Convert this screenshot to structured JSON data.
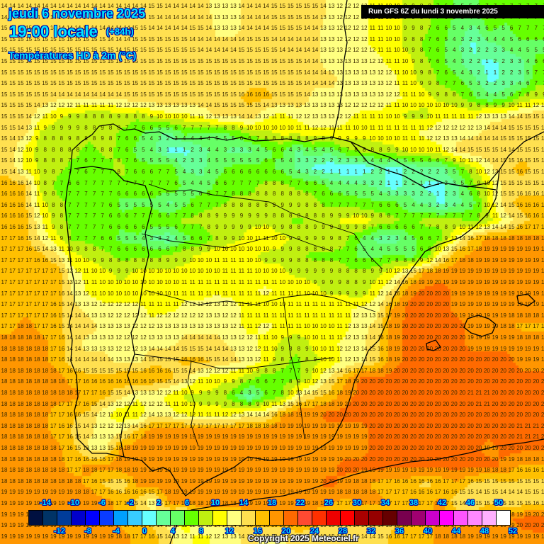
{
  "header": {
    "date": "jeudi 6 novembre 2025",
    "time": "19:00 locale",
    "offset": "(+84h)",
    "variable": "Températures HD à 2m (°C)"
  },
  "run_badge": "Run GFS 6Z du lundi 3 novembre 2025",
  "copyright": "Copyright 2025 Meteociel.fr",
  "colorbar": {
    "colors": [
      "#001040",
      "#003366",
      "#003c9a",
      "#0000cc",
      "#0000ff",
      "#0a3cff",
      "#00a0ff",
      "#38ccff",
      "#66ffff",
      "#66ff99",
      "#66ff66",
      "#66ff00",
      "#c0f010",
      "#ffff00",
      "#ffff80",
      "#ffe050",
      "#ffc000",
      "#ff9600",
      "#ff6a00",
      "#ff4a32",
      "#ff3000",
      "#ee0000",
      "#ff0000",
      "#aa0000",
      "#960000",
      "#660000",
      "#78004e",
      "#a00070",
      "#cc00cc",
      "#ff00ff",
      "#ff55ff",
      "#ff88ff",
      "#ffb0ff",
      "#ffffff"
    ],
    "top_ticks": [
      "-14",
      "-10",
      "-6",
      "-2",
      "2",
      "6",
      "10",
      "14",
      "18",
      "22",
      "26",
      "30",
      "34",
      "38",
      "42",
      "46",
      "50"
    ],
    "bottom_ticks": [
      "-12",
      "-8",
      "-4",
      "0",
      "4",
      "8",
      "12",
      "16",
      "20",
      "24",
      "28",
      "32",
      "36",
      "40",
      "44",
      "48",
      "52"
    ]
  },
  "chart_data": {
    "type": "heatmap",
    "title": "Températures HD à 2m (°C)",
    "subtitle": "jeudi 6 novembre 2025 19:00 locale (+84h) — Run GFS 6Z du lundi 3 novembre 2025",
    "region": "Iberian Peninsula, Bay of Biscay, Balearic Islands, SW France",
    "units": "°C",
    "scale_min": -14,
    "scale_max": 52,
    "scale_step": 2,
    "grid_note": "coarse sample of the labeled value grid (rows top→bottom, cols left→right, ~23px x 31px spacing)",
    "rows": [
      [
        14,
        14,
        14,
        14,
        14,
        14,
        14,
        14,
        14,
        15,
        14,
        14,
        14,
        13,
        13,
        14,
        14,
        15,
        15,
        15,
        13,
        12,
        12,
        11,
        10,
        9,
        8,
        7,
        5,
        5,
        7,
        7,
        7,
        7
      ],
      [
        15,
        15,
        14,
        14,
        14,
        14,
        14,
        14,
        15,
        14,
        14,
        14,
        15,
        13,
        13,
        14,
        14,
        15,
        15,
        14,
        13,
        12,
        12,
        11,
        10,
        9,
        8,
        6,
        5,
        3,
        6,
        5,
        7,
        7
      ],
      [
        15,
        15,
        15,
        15,
        15,
        15,
        15,
        14,
        15,
        15,
        15,
        15,
        14,
        14,
        14,
        15,
        15,
        14,
        14,
        14,
        13,
        12,
        12,
        11,
        10,
        9,
        7,
        6,
        4,
        1,
        3,
        4,
        5,
        5
      ],
      [
        15,
        15,
        15,
        15,
        15,
        15,
        15,
        15,
        15,
        15,
        15,
        15,
        15,
        15,
        15,
        15,
        15,
        15,
        15,
        14,
        13,
        13,
        13,
        12,
        11,
        10,
        8,
        6,
        4,
        2,
        1,
        2,
        3,
        6
      ],
      [
        15,
        15,
        15,
        15,
        15,
        15,
        15,
        15,
        15,
        15,
        15,
        15,
        15,
        15,
        15,
        15,
        15,
        15,
        15,
        14,
        14,
        13,
        13,
        13,
        12,
        10,
        9,
        7,
        6,
        4,
        1,
        2,
        3,
        7
      ],
      [
        15,
        15,
        15,
        14,
        14,
        14,
        14,
        14,
        15,
        15,
        15,
        15,
        15,
        15,
        15,
        16,
        16,
        15,
        15,
        13,
        13,
        13,
        13,
        13,
        12,
        11,
        10,
        9,
        8,
        6,
        4,
        5,
        8,
        9
      ],
      [
        15,
        15,
        12,
        10,
        9,
        8,
        8,
        9,
        8,
        10,
        11,
        11,
        12,
        14,
        14,
        15,
        12,
        11,
        12,
        13,
        13,
        12,
        11,
        11,
        10,
        9,
        9,
        11,
        11,
        11,
        13,
        13,
        14,
        15
      ],
      [
        15,
        14,
        9,
        8,
        9,
        8,
        9,
        7,
        6,
        4,
        3,
        6,
        5,
        5,
        6,
        8,
        9,
        10,
        10,
        11,
        11,
        11,
        10,
        11,
        11,
        11,
        12,
        13,
        13,
        13,
        14,
        15,
        15,
        15
      ],
      [
        15,
        11,
        8,
        8,
        8,
        7,
        8,
        7,
        5,
        4,
        1,
        1,
        3,
        4,
        3,
        3,
        5,
        6,
        3,
        5,
        4,
        7,
        8,
        8,
        9,
        10,
        10,
        11,
        14,
        15,
        15,
        14,
        15,
        15
      ],
      [
        15,
        11,
        9,
        8,
        7,
        6,
        7,
        8,
        6,
        6,
        7,
        3,
        3,
        5,
        6,
        6,
        6,
        5,
        3,
        1,
        0,
        0,
        0,
        2,
        1,
        2,
        3,
        3,
        6,
        9,
        13,
        15,
        16,
        15
      ],
      [
        16,
        16,
        9,
        7,
        6,
        7,
        7,
        7,
        7,
        7,
        7,
        5,
        4,
        6,
        7,
        7,
        8,
        8,
        7,
        7,
        5,
        4,
        4,
        3,
        0,
        3,
        1,
        1,
        3,
        7,
        10,
        15,
        15,
        15
      ],
      [
        16,
        16,
        10,
        8,
        7,
        7,
        7,
        5,
        5,
        5,
        3,
        5,
        7,
        7,
        8,
        8,
        8,
        9,
        9,
        8,
        7,
        7,
        6,
        6,
        6,
        4,
        3,
        1,
        3,
        5,
        10,
        15,
        16,
        16
      ],
      [
        16,
        16,
        12,
        8,
        7,
        7,
        7,
        6,
        7,
        7,
        7,
        8,
        8,
        9,
        9,
        9,
        9,
        8,
        7,
        8,
        9,
        10,
        11,
        9,
        8,
        7,
        8,
        8,
        8,
        7,
        9,
        12,
        15,
        16
      ],
      [
        17,
        16,
        13,
        10,
        7,
        7,
        6,
        5,
        5,
        3,
        2,
        5,
        6,
        8,
        9,
        10,
        11,
        10,
        9,
        9,
        9,
        8,
        5,
        3,
        2,
        5,
        6,
        7,
        12,
        16,
        18,
        18,
        18,
        18
      ],
      [
        17,
        17,
        16,
        14,
        10,
        9,
        8,
        7,
        7,
        7,
        8,
        9,
        10,
        11,
        11,
        10,
        9,
        9,
        8,
        7,
        7,
        7,
        5,
        5,
        6,
        5,
        6,
        13,
        17,
        18,
        19,
        19,
        19,
        19
      ],
      [
        17,
        17,
        17,
        17,
        12,
        11,
        10,
        9,
        10,
        10,
        10,
        10,
        10,
        10,
        11,
        11,
        10,
        10,
        9,
        9,
        9,
        8,
        8,
        9,
        11,
        14,
        18,
        19,
        19,
        19,
        19,
        19,
        19,
        19
      ],
      [
        17,
        17,
        17,
        17,
        13,
        11,
        10,
        10,
        10,
        10,
        10,
        11,
        11,
        11,
        11,
        11,
        12,
        11,
        11,
        10,
        9,
        9,
        8,
        11,
        14,
        19,
        20,
        20,
        19,
        19,
        19,
        19,
        19,
        19
      ],
      [
        17,
        17,
        17,
        16,
        14,
        13,
        12,
        12,
        12,
        11,
        11,
        12,
        12,
        13,
        12,
        11,
        10,
        10,
        11,
        11,
        11,
        11,
        12,
        13,
        18,
        20,
        20,
        20,
        19,
        19,
        19,
        19,
        19,
        19
      ],
      [
        17,
        18,
        17,
        16,
        14,
        14,
        13,
        13,
        12,
        12,
        13,
        13,
        13,
        13,
        12,
        11,
        12,
        11,
        11,
        10,
        10,
        11,
        13,
        14,
        19,
        20,
        20,
        20,
        20,
        19,
        19,
        18,
        17,
        17
      ],
      [
        18,
        18,
        18,
        17,
        14,
        13,
        13,
        12,
        12,
        13,
        13,
        14,
        14,
        14,
        13,
        12,
        11,
        9,
        8,
        10,
        11,
        12,
        13,
        15,
        19,
        20,
        20,
        20,
        20,
        19,
        19,
        19,
        19,
        19
      ],
      [
        18,
        18,
        18,
        17,
        14,
        14,
        14,
        13,
        13,
        15,
        15,
        16,
        16,
        15,
        14,
        13,
        11,
        8,
        7,
        9,
        10,
        12,
        13,
        15,
        19,
        20,
        20,
        20,
        20,
        20,
        20,
        20,
        19,
        19
      ],
      [
        18,
        18,
        18,
        18,
        17,
        16,
        16,
        17,
        17,
        17,
        16,
        14,
        11,
        10,
        10,
        8,
        6,
        7,
        7,
        10,
        14,
        17,
        20,
        20,
        20,
        20,
        20,
        20,
        20,
        20,
        20,
        20,
        20,
        20
      ],
      [
        18,
        18,
        18,
        18,
        18,
        17,
        16,
        14,
        12,
        12,
        11,
        9,
        9,
        9,
        6,
        2,
        6,
        7,
        13,
        15,
        16,
        19,
        20,
        20,
        20,
        20,
        20,
        20,
        20,
        21,
        21,
        20,
        20,
        20
      ],
      [
        18,
        18,
        18,
        17,
        16,
        15,
        12,
        10,
        10,
        13,
        12,
        11,
        10,
        10,
        11,
        13,
        13,
        17,
        19,
        19,
        20,
        20,
        20,
        20,
        20,
        20,
        20,
        20,
        20,
        20,
        20,
        20,
        20,
        20
      ],
      [
        18,
        18,
        18,
        17,
        15,
        14,
        12,
        13,
        16,
        19,
        19,
        19,
        19,
        19,
        19,
        19,
        19,
        19,
        19,
        19,
        19,
        19,
        19,
        20,
        20,
        20,
        20,
        20,
        20,
        20,
        20,
        20,
        21,
        21
      ],
      [
        18,
        18,
        18,
        18,
        16,
        13,
        13,
        18,
        19,
        19,
        19,
        19,
        19,
        19,
        19,
        19,
        19,
        19,
        19,
        19,
        19,
        19,
        19,
        20,
        20,
        20,
        20,
        20,
        20,
        20,
        19,
        20,
        20,
        20
      ],
      [
        18,
        18,
        18,
        18,
        17,
        18,
        18,
        19,
        19,
        19,
        19,
        19,
        19,
        19,
        19,
        19,
        19,
        19,
        19,
        19,
        19,
        20,
        20,
        20,
        20,
        20,
        20,
        20,
        20,
        20,
        20,
        19,
        17,
        17
      ],
      [
        18,
        18,
        18,
        18,
        18,
        17,
        15,
        14,
        18,
        19,
        19,
        19,
        19,
        19,
        19,
        19,
        19,
        19,
        19,
        19,
        20,
        19,
        18,
        17,
        16,
        16,
        15,
        16,
        17,
        15,
        14,
        15,
        15,
        15
      ],
      [
        19,
        19,
        19,
        19,
        19,
        19,
        18,
        17,
        15,
        12,
        18,
        19,
        19,
        19,
        19,
        19,
        19,
        19,
        19,
        19,
        18,
        17,
        18,
        18,
        17,
        17,
        17,
        18,
        14,
        14,
        15,
        14,
        14,
        15
      ],
      [
        19,
        19,
        19,
        19,
        19,
        19,
        18,
        17,
        16,
        15,
        12,
        10,
        14,
        15,
        14,
        17,
        18,
        18,
        17,
        16,
        15,
        14,
        14,
        14,
        15,
        16,
        17,
        18,
        17,
        17,
        18,
        19,
        20,
        21
      ],
      [
        19,
        19,
        19,
        19,
        19,
        19,
        19,
        18,
        17,
        16,
        14,
        12,
        11,
        12,
        13,
        14,
        13,
        13,
        15,
        15,
        15,
        14,
        14,
        14,
        16,
        17,
        17,
        18,
        18,
        19,
        19,
        19,
        19,
        19
      ]
    ]
  }
}
